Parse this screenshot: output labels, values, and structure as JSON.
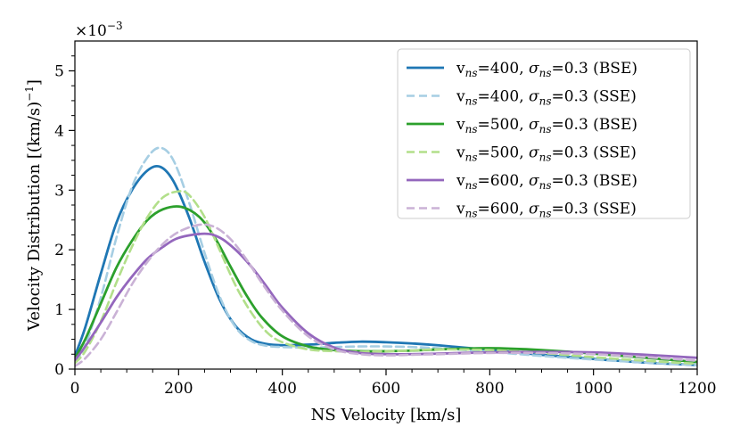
{
  "chart_data": {
    "type": "line",
    "title": "",
    "xlabel": "NS Velocity [km/s]",
    "ylabel": "Velocity Distribution [(km/s)",
    "ylabel_sup": "−1",
    "ylabel_close": "]",
    "y_multiplier_base": "×10",
    "y_multiplier_exp": "−3",
    "xlim": [
      0,
      1200
    ],
    "ylim": [
      0,
      5.5
    ],
    "x_ticks": [
      0,
      200,
      400,
      600,
      800,
      1000,
      1200
    ],
    "x_tick_labels": [
      "0",
      "200",
      "400",
      "600",
      "800",
      "1000",
      "1200"
    ],
    "y_ticks": [
      0,
      1,
      2,
      3,
      4,
      5
    ],
    "y_tick_labels": [
      "0",
      "1",
      "2",
      "3",
      "4",
      "5"
    ],
    "legend_position": "top-right",
    "series": [
      {
        "name": "v_ns=400, sigma_ns=0.3 (BSE)",
        "label_v": "v",
        "label_sub1": "ns",
        "label_mid": "=400, ",
        "label_sigma": "σ",
        "label_sub2": "ns",
        "label_tail": "=0.3 (BSE)",
        "color": "#1f77b4",
        "style": "solid",
        "x": [
          0,
          20,
          50,
          80,
          110,
          140,
          165,
          190,
          220,
          250,
          280,
          310,
          340,
          370,
          400,
          450,
          500,
          550,
          600,
          650,
          700,
          800,
          900,
          1000,
          1100,
          1200
        ],
        "y": [
          0.22,
          0.7,
          1.6,
          2.45,
          3.0,
          3.33,
          3.39,
          3.15,
          2.55,
          1.8,
          1.15,
          0.72,
          0.5,
          0.42,
          0.4,
          0.41,
          0.44,
          0.46,
          0.45,
          0.43,
          0.4,
          0.32,
          0.24,
          0.17,
          0.11,
          0.07
        ]
      },
      {
        "name": "v_ns=400, sigma_ns=0.3 (SSE)",
        "label_v": "v",
        "label_sub1": "ns",
        "label_mid": "=400, ",
        "label_sigma": "σ",
        "label_sub2": "ns",
        "label_tail": "=0.3 (SSE)",
        "color": "#a6cee3",
        "style": "dashed",
        "x": [
          0,
          20,
          50,
          80,
          110,
          140,
          165,
          190,
          220,
          250,
          280,
          310,
          340,
          370,
          400,
          450,
          500,
          550,
          600,
          650,
          700,
          800,
          900,
          1000,
          1100,
          1200
        ],
        "y": [
          0.12,
          0.4,
          1.2,
          2.2,
          3.05,
          3.55,
          3.71,
          3.5,
          2.8,
          1.95,
          1.2,
          0.7,
          0.47,
          0.39,
          0.37,
          0.36,
          0.37,
          0.38,
          0.38,
          0.37,
          0.35,
          0.29,
          0.22,
          0.16,
          0.11,
          0.07
        ]
      },
      {
        "name": "v_ns=500, sigma_ns=0.3 (BSE)",
        "label_v": "v",
        "label_sub1": "ns",
        "label_mid": "=500, ",
        "label_sigma": "σ",
        "label_sub2": "ns",
        "label_tail": "=0.3 (BSE)",
        "color": "#2ca02c",
        "style": "solid",
        "x": [
          0,
          20,
          50,
          80,
          110,
          140,
          170,
          205,
          240,
          270,
          300,
          330,
          360,
          400,
          450,
          500,
          550,
          600,
          650,
          700,
          800,
          900,
          1000,
          1100,
          1200
        ],
        "y": [
          0.18,
          0.5,
          1.1,
          1.7,
          2.15,
          2.5,
          2.68,
          2.72,
          2.55,
          2.2,
          1.72,
          1.25,
          0.87,
          0.55,
          0.38,
          0.32,
          0.3,
          0.3,
          0.31,
          0.33,
          0.35,
          0.32,
          0.26,
          0.19,
          0.12
        ]
      },
      {
        "name": "v_ns=500, sigma_ns=0.3 (SSE)",
        "label_v": "v",
        "label_sub1": "ns",
        "label_mid": "=500, ",
        "label_sigma": "σ",
        "label_sub2": "ns",
        "label_tail": "=0.3 (SSE)",
        "color": "#b2df8a",
        "style": "dashed",
        "x": [
          0,
          20,
          50,
          80,
          110,
          140,
          170,
          200,
          220,
          250,
          280,
          310,
          340,
          370,
          400,
          450,
          500,
          550,
          600,
          650,
          700,
          800,
          900,
          1000,
          1100,
          1200
        ],
        "y": [
          0.1,
          0.3,
          0.8,
          1.45,
          2.05,
          2.55,
          2.88,
          2.98,
          2.92,
          2.55,
          1.98,
          1.4,
          0.95,
          0.62,
          0.45,
          0.33,
          0.3,
          0.29,
          0.3,
          0.31,
          0.33,
          0.32,
          0.27,
          0.2,
          0.14,
          0.09
        ]
      },
      {
        "name": "v_ns=600, sigma_ns=0.3 (BSE)",
        "label_v": "v",
        "label_sub1": "ns",
        "label_mid": "=600, ",
        "label_sigma": "σ",
        "label_sub2": "ns",
        "label_tail": "=0.3 (BSE)",
        "color": "#9467bd",
        "style": "solid",
        "x": [
          0,
          20,
          50,
          80,
          110,
          140,
          170,
          200,
          250,
          280,
          310,
          340,
          370,
          400,
          450,
          500,
          550,
          600,
          650,
          700,
          800,
          900,
          1000,
          1100,
          1200
        ],
        "y": [
          0.15,
          0.38,
          0.78,
          1.2,
          1.55,
          1.85,
          2.05,
          2.2,
          2.27,
          2.2,
          2.0,
          1.72,
          1.38,
          1.03,
          0.6,
          0.36,
          0.27,
          0.25,
          0.25,
          0.26,
          0.28,
          0.29,
          0.28,
          0.24,
          0.19
        ]
      },
      {
        "name": "v_ns=600, sigma_ns=0.3 (SSE)",
        "label_v": "v",
        "label_sub1": "ns",
        "label_mid": "=600, ",
        "label_sigma": "σ",
        "label_sub2": "ns",
        "label_tail": "=0.3 (SSE)",
        "color": "#cab2d6",
        "style": "dashed",
        "x": [
          0,
          20,
          50,
          80,
          110,
          140,
          170,
          200,
          240,
          270,
          300,
          330,
          360,
          400,
          450,
          500,
          550,
          600,
          650,
          700,
          800,
          900,
          1000,
          1100,
          1200
        ],
        "y": [
          0.05,
          0.18,
          0.5,
          0.95,
          1.42,
          1.8,
          2.1,
          2.3,
          2.42,
          2.38,
          2.18,
          1.85,
          1.45,
          0.98,
          0.55,
          0.33,
          0.25,
          0.23,
          0.24,
          0.25,
          0.27,
          0.27,
          0.25,
          0.2,
          0.14
        ]
      }
    ]
  }
}
